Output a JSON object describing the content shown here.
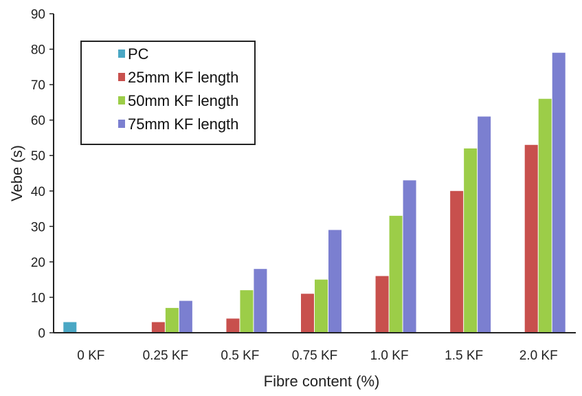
{
  "chart_data": {
    "type": "bar",
    "title": "",
    "xlabel": "Fibre content (%)",
    "ylabel": "Vebe (s)",
    "ylim": [
      0,
      90
    ],
    "yticks": [
      0,
      10,
      20,
      30,
      40,
      50,
      60,
      70,
      80,
      90
    ],
    "categories": [
      "0 KF",
      "0.25 KF",
      "0.5 KF",
      "0.75 KF",
      "1.0 KF",
      "1.5 KF",
      "2.0 KF"
    ],
    "series": [
      {
        "name": "PC",
        "color": "#4aa7c4",
        "values": [
          3,
          0,
          0,
          0,
          0,
          0,
          0
        ]
      },
      {
        "name": "25mm  KF length",
        "color": "#c8504d",
        "values": [
          0,
          3,
          4,
          11,
          16,
          40,
          53
        ]
      },
      {
        "name": "50mm  KF length",
        "color": "#9ccd48",
        "values": [
          0,
          7,
          12,
          15,
          33,
          52,
          66
        ]
      },
      {
        "name": "75mm  KF length",
        "color": "#7b7fd0",
        "values": [
          0,
          9,
          18,
          29,
          43,
          61,
          79
        ]
      }
    ],
    "grid": false,
    "legend_position": "top-left"
  }
}
